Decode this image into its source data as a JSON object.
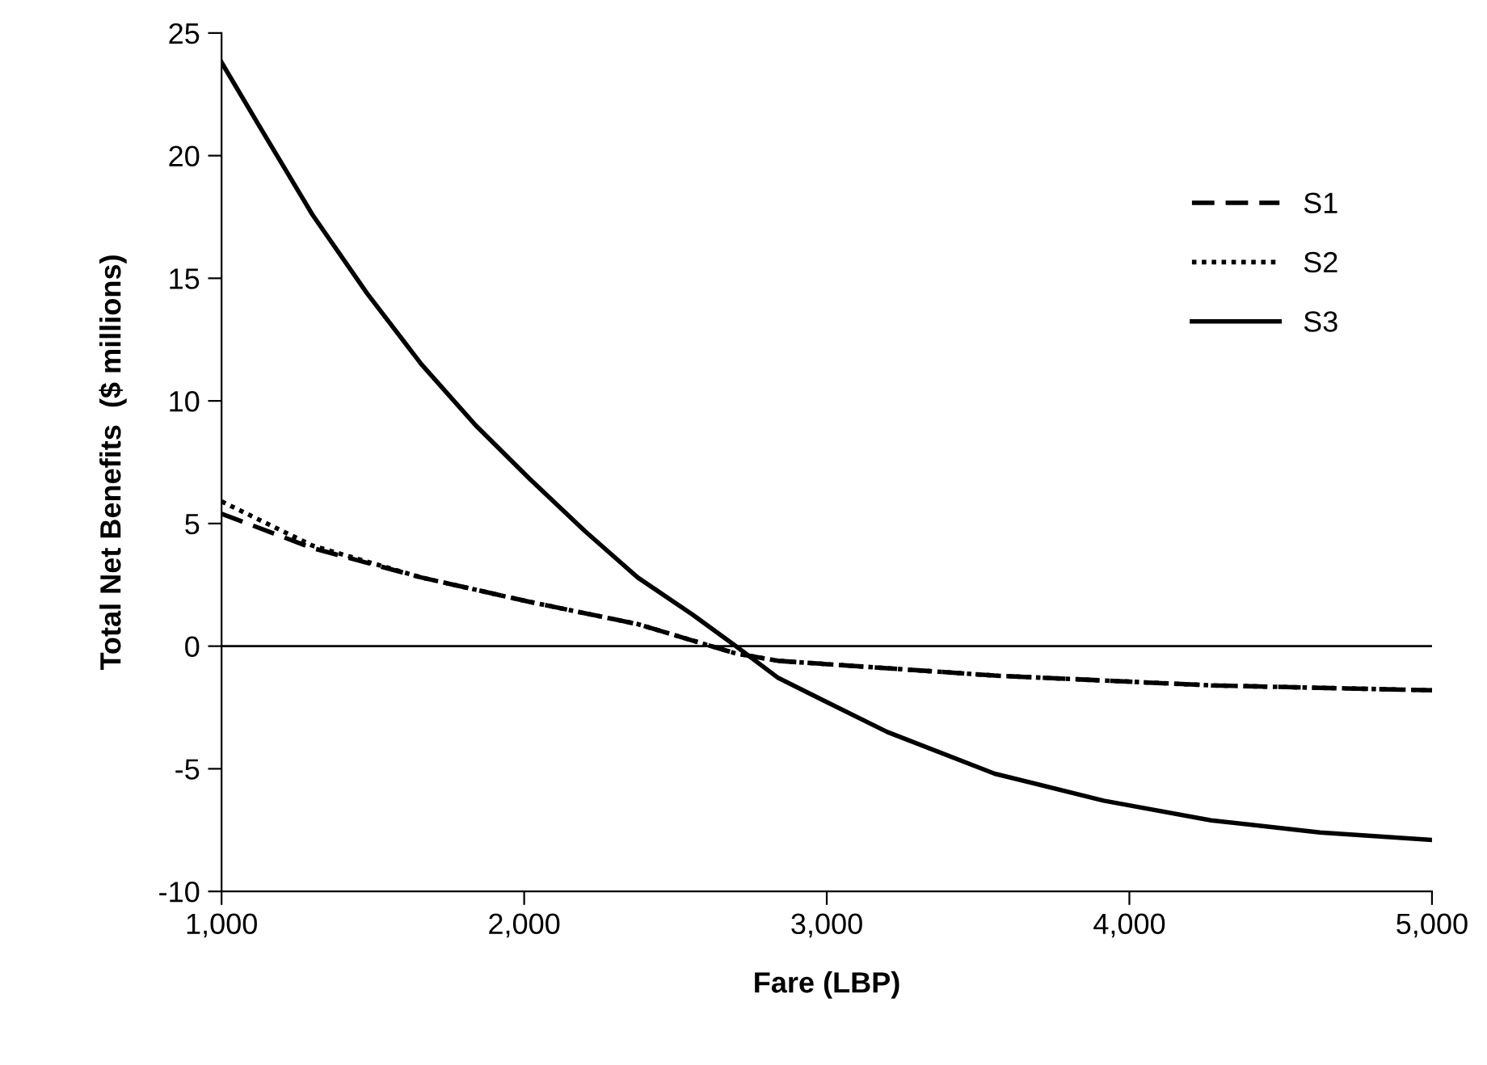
{
  "chart_data": {
    "type": "line",
    "xlabel": "Fare (LBP)",
    "ylabel": "Total Net Benefits  ($ millions)",
    "xlim": [
      1000,
      5000
    ],
    "xticks": [
      {
        "value": 1000,
        "label": "1,000"
      },
      {
        "value": 2000,
        "label": "2,000"
      },
      {
        "value": 3000,
        "label": "3,000"
      },
      {
        "value": 4000,
        "label": "4,000"
      },
      {
        "value": 5000,
        "label": "5,000"
      }
    ],
    "ylim": [
      -10,
      25
    ],
    "yticks": [
      -10,
      -5,
      0,
      5,
      10,
      15,
      20,
      25
    ],
    "grid": false,
    "legend": "right",
    "marker": "none",
    "ref_lines": [
      {
        "axis": "y",
        "value": 0,
        "color": "#000000"
      }
    ],
    "series": [
      {
        "name": "S1",
        "color": "#000000",
        "line_style": "dashed",
        "x": [
          1000,
          1300,
          1660,
          2020,
          2375,
          2700,
          2840,
          3200,
          3555,
          3915,
          4270,
          4630,
          5000
        ],
        "values": [
          5.4,
          4.0,
          2.8,
          1.8,
          0.9,
          -0.3,
          -0.6,
          -0.9,
          -1.2,
          -1.4,
          -1.6,
          -1.7,
          -1.8
        ]
      },
      {
        "name": "S2",
        "color": "#000000",
        "line_style": "dotted",
        "x": [
          1000,
          1300,
          1660,
          2020,
          2375,
          2700,
          2840,
          3200,
          3555,
          3915,
          4270,
          4630,
          5000
        ],
        "values": [
          5.9,
          4.1,
          2.8,
          1.8,
          0.9,
          -0.3,
          -0.6,
          -0.9,
          -1.2,
          -1.4,
          -1.6,
          -1.7,
          -1.8
        ]
      },
      {
        "name": "S3",
        "color": "#000000",
        "line_style": "solid",
        "x": [
          1000,
          1125,
          1300,
          1480,
          1660,
          1840,
          2020,
          2200,
          2375,
          2555,
          2700,
          2840,
          3200,
          3555,
          3915,
          4270,
          4630,
          5000
        ],
        "values": [
          23.8,
          21.2,
          17.6,
          14.4,
          11.5,
          9.0,
          6.8,
          4.7,
          2.8,
          1.3,
          0.0,
          -1.3,
          -3.5,
          -5.2,
          -6.3,
          -7.1,
          -7.6,
          -7.9
        ]
      }
    ]
  }
}
